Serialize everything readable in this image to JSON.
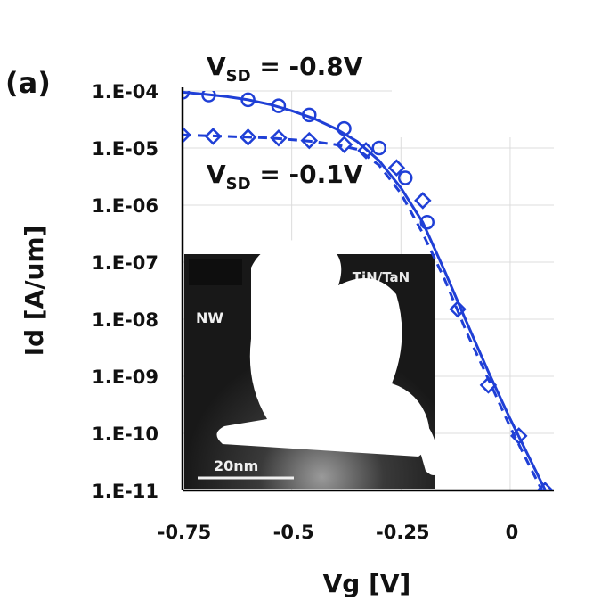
{
  "chart_data": {
    "type": "line",
    "panel_label": "(a)",
    "xlabel": "Vg [V]",
    "ylabel": "Id [A/um]",
    "yscale": "log",
    "xlim": [
      -0.75,
      0.1
    ],
    "ylim": [
      1e-11,
      0.0001
    ],
    "x_ticks": [
      -0.75,
      -0.5,
      -0.25,
      0
    ],
    "x_tick_labels": [
      "-0.75",
      "-0.5",
      "-0.25",
      "0"
    ],
    "y_ticks": [
      1e-11,
      1e-10,
      1e-09,
      1e-08,
      1e-07,
      1e-06,
      1e-05,
      0.0001
    ],
    "y_tick_labels": [
      "1.E-11",
      "1.E-10",
      "1.E-09",
      "1.E-08",
      "1.E-07",
      "1.E-06",
      "1.E-05",
      "1.E-04"
    ],
    "grid": true,
    "color": "#1f3fd6",
    "series": [
      {
        "label": "VSD = -0.8V",
        "label_main": "V",
        "label_sub": "SD",
        "label_value": " = -0.8V",
        "line_style": "solid",
        "marker": "circle",
        "curve": {
          "x": [
            -0.75,
            -0.7,
            -0.65,
            -0.6,
            -0.55,
            -0.5,
            -0.45,
            -0.4,
            -0.35,
            -0.3,
            -0.25,
            -0.2,
            -0.15,
            -0.1,
            -0.05,
            0.0,
            0.05,
            0.1
          ],
          "y": [
            9.5e-05,
            8.8e-05,
            8e-05,
            7e-05,
            5.8e-05,
            4.5e-05,
            3.3e-05,
            2.2e-05,
            1.3e-05,
            6e-06,
            2e-06,
            5e-07,
            7e-08,
            9e-09,
            1.2e-09,
            1.8e-10,
            3e-11,
            5e-12
          ]
        },
        "points": {
          "x": [
            -0.75,
            -0.69,
            -0.6,
            -0.53,
            -0.46,
            -0.38,
            -0.3,
            -0.24,
            -0.19
          ],
          "y": [
            9.5e-05,
            8.5e-05,
            7e-05,
            5.5e-05,
            3.8e-05,
            2.2e-05,
            1e-05,
            3e-06,
            5e-07
          ]
        }
      },
      {
        "label": "VSD = -0.1V",
        "label_main": "V",
        "label_sub": "SD",
        "label_value": " = -0.1V",
        "line_style": "dashed",
        "marker": "diamond",
        "curve": {
          "x": [
            -0.75,
            -0.7,
            -0.65,
            -0.6,
            -0.55,
            -0.5,
            -0.45,
            -0.4,
            -0.35,
            -0.3,
            -0.25,
            -0.2,
            -0.15,
            -0.1,
            -0.05,
            0.0,
            0.05,
            0.1
          ],
          "y": [
            1.7e-05,
            1.65e-05,
            1.6e-05,
            1.55e-05,
            1.5e-05,
            1.4e-05,
            1.3e-05,
            1.15e-05,
            9.5e-06,
            5e-06,
            1.6e-06,
            3.2e-07,
            5e-08,
            6e-09,
            9e-10,
            1.3e-10,
            2.2e-11,
            4e-12
          ]
        },
        "points": {
          "x": [
            -0.75,
            -0.68,
            -0.6,
            -0.53,
            -0.46,
            -0.38,
            -0.33,
            -0.26,
            -0.2,
            -0.12,
            -0.05,
            0.02,
            0.08
          ],
          "y": [
            1.7e-05,
            1.6e-05,
            1.55e-05,
            1.5e-05,
            1.35e-05,
            1.15e-05,
            9e-06,
            4.5e-06,
            1.2e-06,
            1.5e-08,
            7e-10,
            9e-11,
            1e-11
          ]
        }
      }
    ],
    "inset": {
      "labels": [
        "TiN/TaN",
        "NW"
      ],
      "scale_bar": "20nm"
    }
  }
}
